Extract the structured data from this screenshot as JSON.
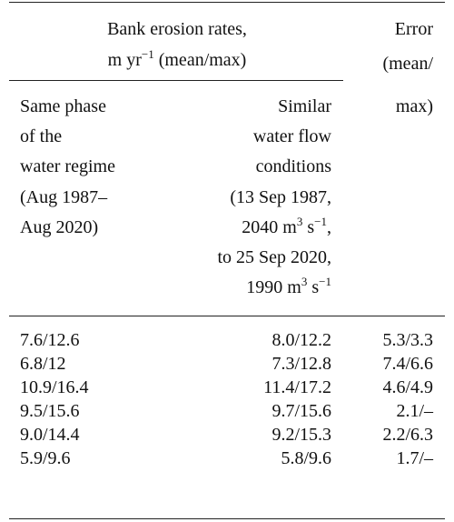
{
  "table": {
    "header": [
      {
        "lines": [
          [
            {
              "text": "Bank erosion rates,"
            }
          ],
          [
            {
              "text": "m yr"
            },
            {
              "sup": "−1"
            },
            {
              "text": " (mean/max)"
            }
          ]
        ]
      },
      {
        "lines": [
          [
            {
              "text": "Error"
            }
          ],
          [
            {
              "text": "(mean/"
            }
          ]
        ]
      }
    ],
    "subheader": [
      {
        "lines": [
          [
            {
              "text": "Same phase"
            }
          ],
          [
            {
              "text": "of the"
            }
          ],
          [
            {
              "text": "water regime"
            }
          ],
          [
            {
              "text": "(Aug 1987–"
            }
          ],
          [
            {
              "text": "Aug 2020)"
            }
          ]
        ]
      },
      {
        "lines": [
          [
            {
              "text": "Similar"
            }
          ],
          [
            {
              "text": "water flow"
            }
          ],
          [
            {
              "text": "conditions"
            }
          ],
          [
            {
              "text": "(13 Sep 1987,"
            }
          ],
          [
            {
              "text": "2040 m"
            },
            {
              "sup": "3"
            },
            {
              "text": " s"
            },
            {
              "sup": "−1"
            },
            {
              "text": ","
            }
          ],
          [
            {
              "text": "to 25 Sep 2020,"
            }
          ],
          [
            {
              "text": "1990 m"
            },
            {
              "sup": "3"
            },
            {
              "text": " s"
            },
            {
              "sup": "−1"
            }
          ]
        ]
      },
      {
        "lines": [
          [
            {
              "text": "max)"
            }
          ]
        ]
      }
    ],
    "rows": [
      [
        "7.6/12.6",
        "8.0/12.2",
        "5.3/3.3"
      ],
      [
        "6.8/12",
        "7.3/12.8",
        "7.4/6.6"
      ],
      [
        "10.9/16.4",
        "11.4/17.2",
        "4.6/4.9"
      ],
      [
        "9.5/15.6",
        "9.7/15.6",
        "2.1/–"
      ],
      [
        "9.0/14.4",
        "9.2/15.3",
        "2.2/6.3"
      ],
      [
        "5.9/9.6",
        "5.8/9.6",
        "1.7/–"
      ]
    ]
  }
}
